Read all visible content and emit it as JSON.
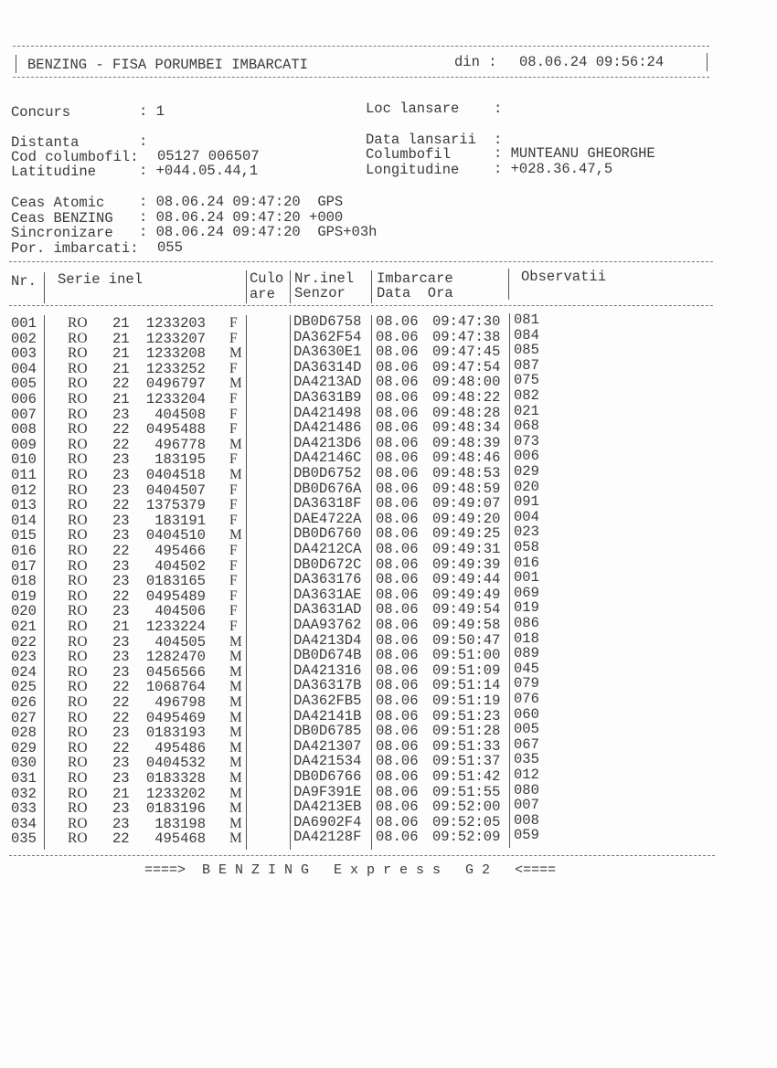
{
  "header": {
    "title": "BENZING - FISA PORUMBEI IMBARCATI",
    "din_label": "din :",
    "din_value": "08.06.24 09:56:24"
  },
  "fields": [
    {
      "label": "Concurs",
      "value": ": 1"
    },
    {
      "label": "Loc lansare",
      "value": ":"
    },
    {
      "label": "Distanta",
      "value": ":"
    },
    {
      "label": "Data lansarii",
      "value": ":"
    },
    {
      "label": "Cod columbofil:",
      "value": "05127 006507"
    },
    {
      "label": "Columbofil",
      "value": ": MUNTEANU GHEORGHE"
    },
    {
      "label": "Latitudine",
      "value": ": +044.05.44,1"
    },
    {
      "label": "Longitudine",
      "value": ": +028.36.47,5"
    },
    {
      "label": "Ceas Atomic",
      "value": ": 08.06.24 09:47:20  GPS"
    },
    {
      "label": "Ceas BENZING",
      "value": ": 08.06.24 09:47:20 +000"
    },
    {
      "label": "Sincronizare",
      "value": ": 08.06.24 09:47:20  GPS+03h"
    },
    {
      "label": "Por. imbarcati:",
      "value": "055"
    }
  ],
  "table": {
    "headers": [
      "Nr.",
      "Serie inel",
      "Culo",
      "are",
      "Nr.inel",
      "Senzor",
      "Imbarcare",
      "Data  Ora",
      "Observatii"
    ],
    "rows": [
      [
        "001",
        "RO",
        "21",
        "1233203",
        "F",
        "DB0D6758",
        "08.06",
        "09:47:30",
        "081"
      ],
      [
        "002",
        "RO",
        "21",
        "1233207",
        "F",
        "DA362F54",
        "08.06",
        "09:47:38",
        "084"
      ],
      [
        "003",
        "RO",
        "21",
        "1233208",
        "M",
        "DA3630E1",
        "08.06",
        "09:47:45",
        "085"
      ],
      [
        "004",
        "RO",
        "21",
        "1233252",
        "F",
        "DA36314D",
        "08.06",
        "09:47:54",
        "087"
      ],
      [
        "005",
        "RO",
        "22",
        "0496797",
        "M",
        "DA4213AD",
        "08.06",
        "09:48:00",
        "075"
      ],
      [
        "006",
        "RO",
        "21",
        "1233204",
        "F",
        "DA3631B9",
        "08.06",
        "09:48:22",
        "082"
      ],
      [
        "007",
        "RO",
        "23",
        "404508",
        "F",
        "DA421498",
        "08.06",
        "09:48:28",
        "021"
      ],
      [
        "008",
        "RO",
        "22",
        "0495488",
        "F",
        "DA421486",
        "08.06",
        "09:48:34",
        "068"
      ],
      [
        "009",
        "RO",
        "22",
        "496778",
        "M",
        "DA4213D6",
        "08.06",
        "09:48:39",
        "073"
      ],
      [
        "010",
        "RO",
        "23",
        "183195",
        "F",
        "DA42146C",
        "08.06",
        "09:48:46",
        "006"
      ],
      [
        "011",
        "RO",
        "23",
        "0404518",
        "M",
        "DB0D6752",
        "08.06",
        "09:48:53",
        "029"
      ],
      [
        "012",
        "RO",
        "23",
        "0404507",
        "F",
        "DB0D676A",
        "08.06",
        "09:48:59",
        "020"
      ],
      [
        "013",
        "RO",
        "22",
        "1375379",
        "F",
        "DA36318F",
        "08.06",
        "09:49:07",
        "091"
      ],
      [
        "014",
        "RO",
        "23",
        "183191",
        "F",
        "DAE4722A",
        "08.06",
        "09:49:20",
        "004"
      ],
      [
        "015",
        "RO",
        "23",
        "0404510",
        "M",
        "DB0D6760",
        "08.06",
        "09:49:25",
        "023"
      ],
      [
        "016",
        "RO",
        "22",
        "495466",
        "F",
        "DA4212CA",
        "08.06",
        "09:49:31",
        "058"
      ],
      [
        "017",
        "RO",
        "23",
        "404502",
        "F",
        "DB0D672C",
        "08.06",
        "09:49:39",
        "016"
      ],
      [
        "018",
        "RO",
        "23",
        "0183165",
        "F",
        "DA363176",
        "08.06",
        "09:49:44",
        "001"
      ],
      [
        "019",
        "RO",
        "22",
        "0495489",
        "F",
        "DA3631AE",
        "08.06",
        "09:49:49",
        "069"
      ],
      [
        "020",
        "RO",
        "23",
        "404506",
        "F",
        "DA3631AD",
        "08.06",
        "09:49:54",
        "019"
      ],
      [
        "021",
        "RO",
        "21",
        "1233224",
        "F",
        "DAA93762",
        "08.06",
        "09:49:58",
        "086"
      ],
      [
        "022",
        "RO",
        "23",
        "404505",
        "M",
        "DA4213D4",
        "08.06",
        "09:50:47",
        "018"
      ],
      [
        "023",
        "RO",
        "23",
        "1282470",
        "M",
        "DB0D674B",
        "08.06",
        "09:51:00",
        "089"
      ],
      [
        "024",
        "RO",
        "23",
        "0456566",
        "M",
        "DA421316",
        "08.06",
        "09:51:09",
        "045"
      ],
      [
        "025",
        "RO",
        "22",
        "1068764",
        "M",
        "DA36317B",
        "08.06",
        "09:51:14",
        "079"
      ],
      [
        "026",
        "RO",
        "22",
        "496798",
        "M",
        "DA362FB5",
        "08.06",
        "09:51:19",
        "076"
      ],
      [
        "027",
        "RO",
        "22",
        "0495469",
        "M",
        "DA42141B",
        "08.06",
        "09:51:23",
        "060"
      ],
      [
        "028",
        "RO",
        "23",
        "0183193",
        "M",
        "DB0D6785",
        "08.06",
        "09:51:28",
        "005"
      ],
      [
        "029",
        "RO",
        "22",
        "495486",
        "M",
        "DA421307",
        "08.06",
        "09:51:33",
        "067"
      ],
      [
        "030",
        "RO",
        "23",
        "0404532",
        "M",
        "DA421534",
        "08.06",
        "09:51:37",
        "035"
      ],
      [
        "031",
        "RO",
        "23",
        "0183328",
        "M",
        "DB0D6766",
        "08.06",
        "09:51:42",
        "012"
      ],
      [
        "032",
        "RO",
        "21",
        "1233202",
        "M",
        "DA9F391E",
        "08.06",
        "09:51:55",
        "080"
      ],
      [
        "033",
        "RO",
        "23",
        "0183196",
        "M",
        "DA4213EB",
        "08.06",
        "09:52:00",
        "007"
      ],
      [
        "034",
        "RO",
        "23",
        "183198",
        "M",
        "DA6902F4",
        "08.06",
        "09:52:05",
        "008"
      ],
      [
        "035",
        "RO",
        "22",
        "495468",
        "M",
        "DA42128F",
        "08.06",
        "09:52:09",
        "059"
      ]
    ]
  },
  "footer": "====>  B E N Z I N G   E x p r e s s   G 2   <===="
}
